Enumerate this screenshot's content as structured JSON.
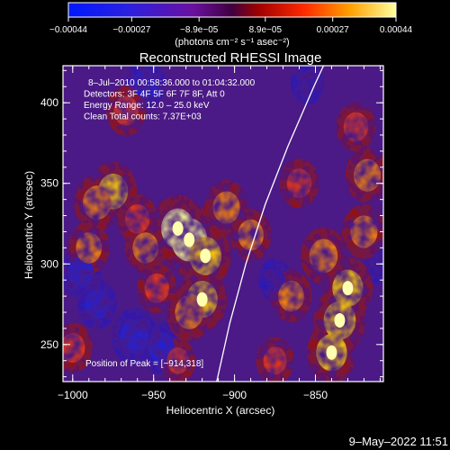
{
  "chart_data": {
    "type": "heatmap",
    "title": "Reconstructed RHESSI Image",
    "xlabel": "Heliocentric X (arcsec)",
    "ylabel": "Heliocentric Y (arcsec)",
    "xlim": [
      -1006,
      -808
    ],
    "ylim": [
      227,
      423
    ],
    "x_ticks": [
      -1000,
      -950,
      -900,
      -850
    ],
    "x_tick_labels": [
      "−1000",
      "−950",
      "−900",
      "−850"
    ],
    "y_ticks": [
      250,
      300,
      350,
      400
    ],
    "y_tick_labels": [
      "250",
      "300",
      "350",
      "400"
    ],
    "colorbar": {
      "range": [
        -0.00044,
        0.00044
      ],
      "ticks": [
        -0.00044,
        -0.00027,
        -8.9e-05,
        8.9e-05,
        0.00027,
        0.00044
      ],
      "tick_labels": [
        "−0.00044",
        "−0.00027",
        "−8.9e−05",
        "8.9e−05",
        "0.00027",
        "0.00044"
      ],
      "unit_label": "(photons cm⁻² s⁻¹ asec⁻²)"
    },
    "annotations": [
      "8–Jul–2010 00:58:36.000 to 01:04:32.000",
      "Detectors: 3F 4F 5F 6F 7F 8F, Att 0",
      "Energy Range: 12.0 – 25.0 keV",
      "Clean     Total counts: 7.37E+03"
    ],
    "peak_label": "Position of Peak = [−914,318]",
    "peak": [
      -914,
      318
    ],
    "limb_curve": [
      [
        -911,
        227
      ],
      [
        -903,
        263
      ],
      [
        -893,
        300
      ],
      [
        -881,
        337
      ],
      [
        -867,
        373
      ],
      [
        -851,
        410
      ],
      [
        -845,
        423
      ]
    ],
    "hot_spots": [
      {
        "x": -928,
        "y": 315,
        "level": 1.0
      },
      {
        "x": -935,
        "y": 322,
        "level": 0.9
      },
      {
        "x": -918,
        "y": 305,
        "level": 0.85
      },
      {
        "x": -920,
        "y": 278,
        "level": 0.8
      },
      {
        "x": -928,
        "y": 270,
        "level": 0.7
      },
      {
        "x": -975,
        "y": 345,
        "level": 0.75
      },
      {
        "x": -985,
        "y": 338,
        "level": 0.7
      },
      {
        "x": -990,
        "y": 310,
        "level": 0.6
      },
      {
        "x": -955,
        "y": 310,
        "level": 0.6
      },
      {
        "x": -960,
        "y": 328,
        "level": 0.55
      },
      {
        "x": -905,
        "y": 335,
        "level": 0.65
      },
      {
        "x": -890,
        "y": 318,
        "level": 0.6
      },
      {
        "x": -948,
        "y": 285,
        "level": 0.55
      },
      {
        "x": -967,
        "y": 395,
        "level": 0.55
      },
      {
        "x": -835,
        "y": 265,
        "level": 0.85
      },
      {
        "x": -830,
        "y": 285,
        "level": 0.8
      },
      {
        "x": -840,
        "y": 245,
        "level": 0.8
      },
      {
        "x": -845,
        "y": 305,
        "level": 0.7
      },
      {
        "x": -820,
        "y": 320,
        "level": 0.65
      },
      {
        "x": -818,
        "y": 355,
        "level": 0.65
      },
      {
        "x": -825,
        "y": 385,
        "level": 0.55
      },
      {
        "x": -860,
        "y": 350,
        "level": 0.55
      },
      {
        "x": -865,
        "y": 280,
        "level": 0.6
      },
      {
        "x": -875,
        "y": 240,
        "level": 0.5
      },
      {
        "x": -1000,
        "y": 248,
        "level": 0.55
      },
      {
        "x": -935,
        "y": 240,
        "level": 0.45
      }
    ],
    "cold_spots": [
      {
        "x": -995,
        "y": 295,
        "level": -0.6
      },
      {
        "x": -985,
        "y": 275,
        "level": -0.55
      },
      {
        "x": -962,
        "y": 255,
        "level": -0.7
      },
      {
        "x": -945,
        "y": 248,
        "level": -0.6
      },
      {
        "x": -955,
        "y": 412,
        "level": -0.55
      },
      {
        "x": -875,
        "y": 290,
        "level": -0.4
      },
      {
        "x": -855,
        "y": 412,
        "level": -0.4
      },
      {
        "x": -810,
        "y": 300,
        "level": -0.4
      }
    ]
  },
  "footer": {
    "timestamp": "9–May–2022 11:51"
  }
}
